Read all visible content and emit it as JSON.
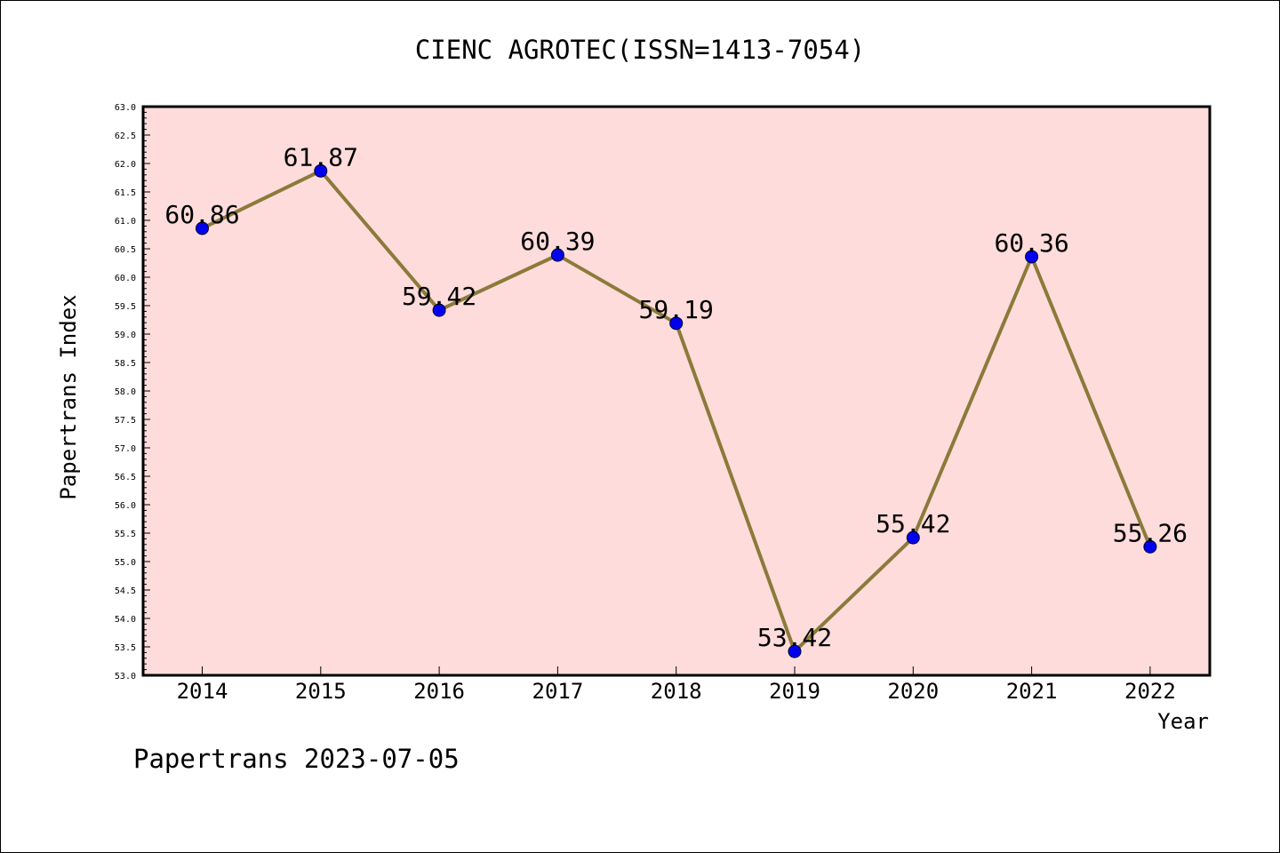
{
  "chart_data": {
    "type": "line",
    "title": "CIENC AGROTEC(ISSN=1413-7054)",
    "xlabel": "Year",
    "ylabel": "Papertrans Index",
    "categories": [
      "2014",
      "2015",
      "2016",
      "2017",
      "2018",
      "2019",
      "2020",
      "2021",
      "2022"
    ],
    "series": [
      {
        "values": [
          60.86,
          61.87,
          59.42,
          60.39,
          59.19,
          53.42,
          55.42,
          60.36,
          55.26
        ]
      }
    ],
    "data_labels": [
      "60.86",
      "61.87",
      "59.42",
      "60.39",
      "59.19",
      "53.42",
      "55.42",
      "60.36",
      "55.26"
    ],
    "ylim": [
      53.0,
      63.0
    ],
    "ytick_labels": [
      "53.0",
      "53.5",
      "54.0",
      "54.5",
      "55.0",
      "55.5",
      "56.0",
      "56.5",
      "57.0",
      "57.5",
      "58.0",
      "58.5",
      "59.0",
      "59.5",
      "60.0",
      "60.5",
      "61.0",
      "61.5",
      "62.0",
      "62.5",
      "63.0"
    ],
    "grid": false,
    "colors": {
      "plot_background": "#fddcdb",
      "line": "#8b7a3a",
      "marker": "#0000ee"
    }
  },
  "footer": {
    "text": "Papertrans 2023-07-05"
  }
}
